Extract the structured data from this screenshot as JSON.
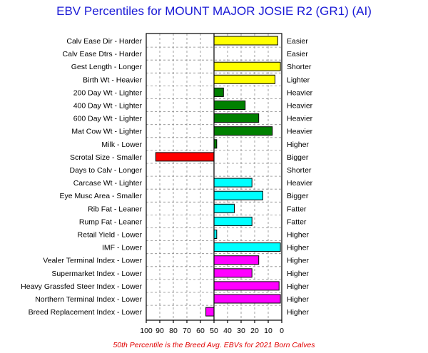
{
  "chart_data": {
    "type": "bar",
    "orientation": "horizontal",
    "title": "EBV Percentiles for MOUNT MAJOR JOSIE R2 (GR1) (AI)",
    "footnote": "50th Percentile is the Breed Avg. EBVs for 2021 Born Calves",
    "xlim": [
      100,
      0
    ],
    "xticks": [
      "100",
      "90",
      "80",
      "70",
      "60",
      "50",
      "40",
      "30",
      "20",
      "10",
      "0"
    ],
    "grid": true,
    "baseline": 50,
    "colors": {
      "yellow": "#ffff00",
      "green": "#008000",
      "red": "#ff0000",
      "cyan": "#00ffff",
      "magenta": "#ff00ff"
    },
    "rows": [
      {
        "left": "Calv Ease Dir - Harder",
        "right": "Easier",
        "value": 3,
        "color": "yellow"
      },
      {
        "left": "Calv Ease Dtrs - Harder",
        "right": "Easier",
        "value": null,
        "color": "yellow"
      },
      {
        "left": "Gest Length - Longer",
        "right": "Shorter",
        "value": 1,
        "color": "yellow"
      },
      {
        "left": "Birth Wt - Heavier",
        "right": "Lighter",
        "value": 5,
        "color": "yellow"
      },
      {
        "left": "200 Day Wt - Lighter",
        "right": "Heavier",
        "value": 43,
        "color": "green"
      },
      {
        "left": "400 Day Wt - Lighter",
        "right": "Heavier",
        "value": 27,
        "color": "green"
      },
      {
        "left": "600 Day Wt - Lighter",
        "right": "Heavier",
        "value": 17,
        "color": "green"
      },
      {
        "left": "Mat Cow Wt - Lighter",
        "right": "Heavier",
        "value": 7,
        "color": "green"
      },
      {
        "left": "Milk - Lower",
        "right": "Higher",
        "value": 48,
        "color": "green"
      },
      {
        "left": "Scrotal Size - Smaller",
        "right": "Bigger",
        "value": 93,
        "color": "red"
      },
      {
        "left": "Days to Calv - Longer",
        "right": "Shorter",
        "value": null,
        "color": "red"
      },
      {
        "left": "Carcase Wt - Lighter",
        "right": "Heavier",
        "value": 22,
        "color": "cyan"
      },
      {
        "left": "Eye Musc Area - Smaller",
        "right": "Bigger",
        "value": 14,
        "color": "cyan"
      },
      {
        "left": "Rib Fat - Leaner",
        "right": "Fatter",
        "value": 35,
        "color": "cyan"
      },
      {
        "left": "Rump Fat - Leaner",
        "right": "Fatter",
        "value": 22,
        "color": "cyan"
      },
      {
        "left": "Retail Yield - Lower",
        "right": "Higher",
        "value": 48,
        "color": "cyan"
      },
      {
        "left": "IMF - Lower",
        "right": "Higher",
        "value": 1,
        "color": "cyan"
      },
      {
        "left": "Vealer Terminal Index - Lower",
        "right": "Higher",
        "value": 17,
        "color": "magenta"
      },
      {
        "left": "Supermarket Index - Lower",
        "right": "Higher",
        "value": 22,
        "color": "magenta"
      },
      {
        "left": "Heavy Grassfed Steer Index - Lower",
        "right": "Higher",
        "value": 2,
        "color": "magenta"
      },
      {
        "left": "Northern Terminal Index - Lower",
        "right": "Higher",
        "value": 1,
        "color": "magenta"
      },
      {
        "left": "Breed Replacement Index - Lower",
        "right": "Higher",
        "value": 56,
        "color": "magenta"
      }
    ]
  }
}
